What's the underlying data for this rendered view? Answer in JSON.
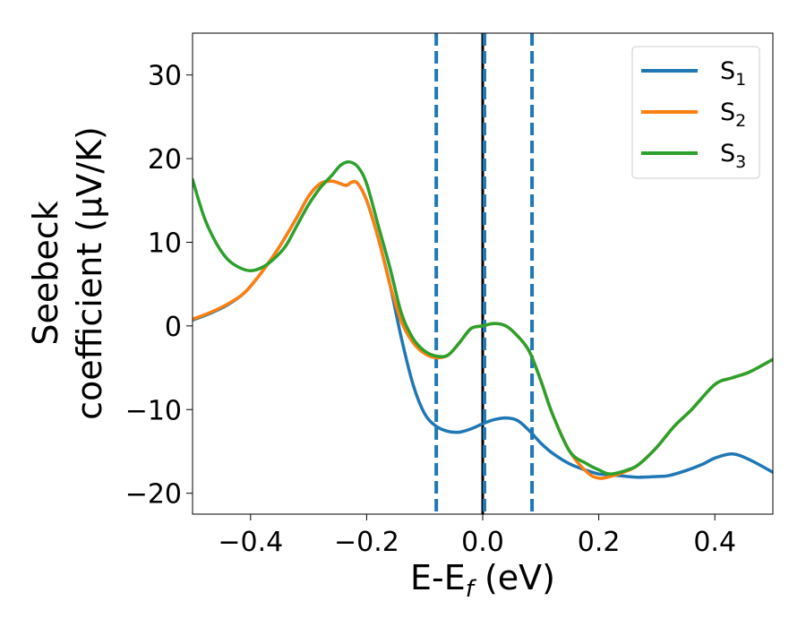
{
  "chart_data": {
    "type": "line",
    "xlabel": "E-E",
    "xlabel_sub": "f",
    "xlabel_unit": " (eV)",
    "ylabel_line1": "Seebeck",
    "ylabel_line2": "coefficient  (μV/K)",
    "xlim": [
      -0.5,
      0.5
    ],
    "ylim": [
      -22.5,
      35
    ],
    "xticks": [
      -0.4,
      -0.2,
      0.0,
      0.2,
      0.4
    ],
    "xtick_labels": [
      "−0.4",
      "−0.2",
      "0.0",
      "0.2",
      "0.4"
    ],
    "yticks": [
      -20,
      -10,
      0,
      10,
      20,
      30
    ],
    "ytick_labels": [
      "−20",
      "−10",
      "0",
      "10",
      "20",
      "30"
    ],
    "legend_position": "top-right",
    "grid": false,
    "vertical_lines": [
      {
        "x": -0.08,
        "style": "dashed",
        "color": "#1f77b4"
      },
      {
        "x": 0.0,
        "style": "solid",
        "color": "#000000"
      },
      {
        "x": 0.003,
        "style": "dashed",
        "color": "#1f77b4"
      },
      {
        "x": 0.085,
        "style": "dashed",
        "color": "#1f77b4"
      }
    ],
    "series": [
      {
        "name": "S",
        "sub": "1",
        "color": "#1f77b4",
        "x": [
          -0.5,
          -0.47,
          -0.44,
          -0.41,
          -0.38,
          -0.35,
          -0.32,
          -0.3,
          -0.28,
          -0.26,
          -0.245,
          -0.235,
          -0.225,
          -0.215,
          -0.2,
          -0.18,
          -0.16,
          -0.14,
          -0.12,
          -0.1,
          -0.08,
          -0.06,
          -0.04,
          -0.02,
          0.0,
          0.02,
          0.04,
          0.06,
          0.08,
          0.1,
          0.12,
          0.15,
          0.18,
          0.2,
          0.22,
          0.25,
          0.27,
          0.3,
          0.32,
          0.35,
          0.38,
          0.4,
          0.43,
          0.46,
          0.5
        ],
        "y": [
          0.7,
          1.5,
          2.5,
          4.0,
          6.5,
          9.5,
          13.0,
          15.5,
          17.0,
          17.3,
          17.0,
          16.8,
          17.2,
          17.0,
          15.0,
          10.5,
          5.0,
          -1.5,
          -7.0,
          -10.5,
          -12.0,
          -12.6,
          -12.7,
          -12.3,
          -11.7,
          -11.2,
          -11.0,
          -11.3,
          -12.5,
          -14.0,
          -15.2,
          -16.5,
          -17.3,
          -17.7,
          -17.8,
          -18.0,
          -18.1,
          -18.0,
          -17.9,
          -17.3,
          -16.5,
          -15.8,
          -15.3,
          -16.0,
          -17.5
        ]
      },
      {
        "name": "S",
        "sub": "2",
        "color": "#ff7f0e",
        "x": [
          -0.5,
          -0.47,
          -0.44,
          -0.41,
          -0.38,
          -0.35,
          -0.32,
          -0.3,
          -0.28,
          -0.26,
          -0.245,
          -0.235,
          -0.225,
          -0.215,
          -0.2,
          -0.18,
          -0.16,
          -0.14,
          -0.12,
          -0.1,
          -0.08,
          -0.06,
          -0.04,
          -0.02,
          0.0,
          0.02,
          0.04,
          0.06,
          0.08,
          0.1,
          0.12,
          0.15,
          0.18,
          0.2,
          0.22,
          0.25,
          0.27,
          0.3,
          0.33,
          0.36,
          0.4,
          0.43,
          0.46,
          0.5
        ],
        "y": [
          0.8,
          1.6,
          2.6,
          4.0,
          6.5,
          9.5,
          13.0,
          15.5,
          17.0,
          17.3,
          17.0,
          16.8,
          17.2,
          17.0,
          15.0,
          10.5,
          5.0,
          0.5,
          -2.0,
          -3.3,
          -3.8,
          -3.5,
          -2.0,
          -0.3,
          0.0,
          0.3,
          0.0,
          -1.2,
          -3.0,
          -6.5,
          -10.5,
          -15.0,
          -17.5,
          -18.2,
          -18.0,
          -17.3,
          -16.5,
          -14.5,
          -12.0,
          -10.0,
          -7.0,
          -6.2,
          -5.5,
          -4.0
        ]
      },
      {
        "name": "S",
        "sub": "3",
        "color": "#2ca02c",
        "x": [
          -0.5,
          -0.48,
          -0.46,
          -0.44,
          -0.42,
          -0.4,
          -0.38,
          -0.36,
          -0.34,
          -0.32,
          -0.3,
          -0.28,
          -0.26,
          -0.245,
          -0.23,
          -0.215,
          -0.2,
          -0.18,
          -0.16,
          -0.14,
          -0.12,
          -0.1,
          -0.08,
          -0.06,
          -0.04,
          -0.02,
          0.0,
          0.02,
          0.04,
          0.06,
          0.08,
          0.1,
          0.12,
          0.15,
          0.18,
          0.2,
          0.22,
          0.25,
          0.27,
          0.3,
          0.33,
          0.36,
          0.4,
          0.43,
          0.46,
          0.5
        ],
        "y": [
          17.5,
          13.0,
          10.0,
          8.0,
          7.0,
          6.6,
          7.0,
          8.0,
          9.5,
          12.0,
          14.5,
          16.5,
          18.0,
          19.2,
          19.6,
          19.0,
          17.0,
          12.0,
          7.0,
          1.5,
          -1.5,
          -3.0,
          -3.6,
          -3.5,
          -2.0,
          -0.3,
          0.0,
          0.3,
          0.0,
          -1.2,
          -3.0,
          -6.5,
          -10.5,
          -15.0,
          -16.5,
          -17.2,
          -17.7,
          -17.2,
          -16.5,
          -14.5,
          -12.0,
          -10.0,
          -7.0,
          -6.2,
          -5.5,
          -4.0
        ]
      }
    ]
  }
}
